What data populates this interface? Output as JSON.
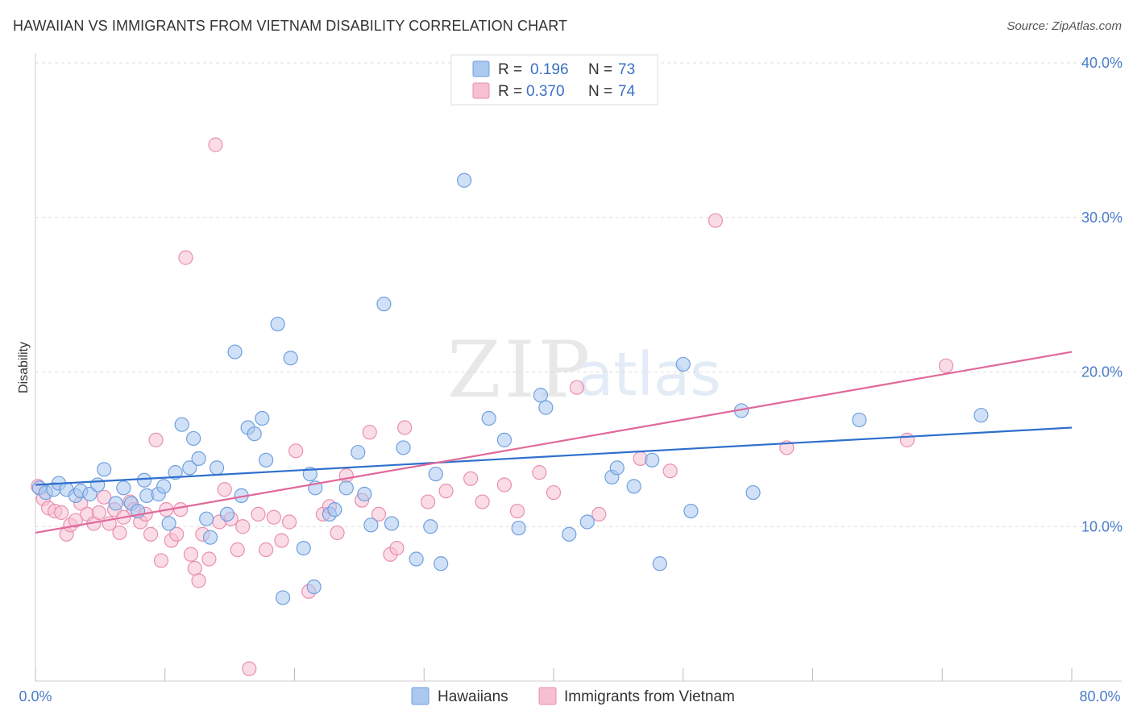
{
  "header": {
    "title": "HAWAIIAN VS IMMIGRANTS FROM VIETNAM DISABILITY CORRELATION CHART",
    "source": "Source: ZipAtlas.com"
  },
  "watermark": {
    "zip": "ZIP",
    "atlas": "atlas"
  },
  "colors": {
    "blue_fill": "#aac8f0",
    "blue_stroke": "#6f9fe0",
    "blue_line": "#2f6fcd",
    "pink_fill": "#f6bfd2",
    "pink_stroke": "#ea8fb0",
    "pink_line": "#e0689a",
    "tick_color": "#4a7cc9",
    "grid": "#dddddd"
  },
  "legend": {
    "rows": [
      {
        "r_label": "R =",
        "r_value": "0.196",
        "n_label": "N =",
        "n_value": "73"
      },
      {
        "r_label": "R =",
        "r_value": "0.370",
        "n_label": "N =",
        "n_value": "74"
      }
    ]
  },
  "chart_data": {
    "type": "scatter",
    "title": "HAWAIIAN VS IMMIGRANTS FROM VIETNAM DISABILITY CORRELATION CHART",
    "xlabel": "",
    "ylabel": "Disability",
    "xlim": [
      0,
      80
    ],
    "ylim": [
      0,
      40
    ],
    "y_ticks": [
      10,
      20,
      30,
      40
    ],
    "y_tick_labels": [
      "10.0%",
      "20.0%",
      "30.0%",
      "40.0%"
    ],
    "x_tick_labels": [
      "0.0%",
      "80.0%"
    ],
    "legend_position": "top-center",
    "series": [
      {
        "name": "Hawaiians",
        "r": 0.196,
        "n": 73,
        "trend": [
          [
            0,
            12.7
          ],
          [
            80,
            16.4
          ]
        ],
        "points": [
          [
            0.3,
            12.5
          ],
          [
            0.8,
            12.2
          ],
          [
            1.4,
            12.4
          ],
          [
            1.8,
            12.8
          ],
          [
            2.4,
            12.4
          ],
          [
            3.1,
            12.0
          ],
          [
            3.5,
            12.3
          ],
          [
            4.2,
            12.1
          ],
          [
            4.8,
            12.7
          ],
          [
            5.3,
            13.7
          ],
          [
            6.2,
            11.5
          ],
          [
            6.8,
            12.5
          ],
          [
            7.4,
            11.5
          ],
          [
            7.9,
            11.0
          ],
          [
            8.4,
            13.0
          ],
          [
            8.6,
            12.0
          ],
          [
            9.5,
            12.1
          ],
          [
            9.9,
            12.6
          ],
          [
            10.3,
            10.2
          ],
          [
            10.8,
            13.5
          ],
          [
            11.3,
            16.6
          ],
          [
            11.9,
            13.8
          ],
          [
            12.2,
            15.7
          ],
          [
            12.6,
            14.4
          ],
          [
            13.2,
            10.5
          ],
          [
            13.5,
            9.3
          ],
          [
            14.0,
            13.8
          ],
          [
            14.8,
            10.8
          ],
          [
            15.4,
            21.3
          ],
          [
            15.9,
            12.0
          ],
          [
            16.4,
            16.4
          ],
          [
            16.9,
            16.0
          ],
          [
            17.5,
            17.0
          ],
          [
            17.8,
            14.3
          ],
          [
            18.7,
            23.1
          ],
          [
            19.1,
            5.4
          ],
          [
            19.7,
            20.9
          ],
          [
            20.7,
            8.6
          ],
          [
            21.2,
            13.4
          ],
          [
            21.6,
            12.5
          ],
          [
            21.5,
            6.1
          ],
          [
            22.7,
            10.8
          ],
          [
            23.1,
            11.1
          ],
          [
            24.0,
            12.5
          ],
          [
            24.9,
            14.8
          ],
          [
            25.4,
            12.1
          ],
          [
            25.9,
            10.1
          ],
          [
            26.9,
            24.4
          ],
          [
            27.5,
            10.2
          ],
          [
            28.4,
            15.1
          ],
          [
            29.4,
            7.9
          ],
          [
            30.5,
            10.0
          ],
          [
            30.9,
            13.4
          ],
          [
            31.3,
            7.6
          ],
          [
            33.1,
            32.4
          ],
          [
            35.0,
            17.0
          ],
          [
            36.2,
            15.6
          ],
          [
            37.3,
            9.9
          ],
          [
            39.0,
            18.5
          ],
          [
            39.4,
            17.7
          ],
          [
            41.2,
            9.5
          ],
          [
            42.6,
            10.3
          ],
          [
            44.5,
            13.2
          ],
          [
            44.9,
            13.8
          ],
          [
            46.2,
            12.6
          ],
          [
            47.6,
            14.3
          ],
          [
            48.2,
            7.6
          ],
          [
            50.0,
            20.5
          ],
          [
            50.6,
            11.0
          ],
          [
            54.5,
            17.5
          ],
          [
            55.4,
            12.2
          ],
          [
            63.6,
            16.9
          ],
          [
            73.0,
            17.2
          ]
        ]
      },
      {
        "name": "Immigrants from Vietnam",
        "r": 0.37,
        "n": 74,
        "trend": [
          [
            0,
            9.6
          ],
          [
            80,
            21.3
          ]
        ],
        "points": [
          [
            0.2,
            12.6
          ],
          [
            0.6,
            11.8
          ],
          [
            1.0,
            11.2
          ],
          [
            1.5,
            11.0
          ],
          [
            2.0,
            10.9
          ],
          [
            2.4,
            9.5
          ],
          [
            2.7,
            10.1
          ],
          [
            3.1,
            10.4
          ],
          [
            3.5,
            11.5
          ],
          [
            4.0,
            10.8
          ],
          [
            4.5,
            10.2
          ],
          [
            4.9,
            10.9
          ],
          [
            5.3,
            11.9
          ],
          [
            5.7,
            10.2
          ],
          [
            6.1,
            11.1
          ],
          [
            6.5,
            9.6
          ],
          [
            6.8,
            10.6
          ],
          [
            7.3,
            11.6
          ],
          [
            7.6,
            11.1
          ],
          [
            8.1,
            10.3
          ],
          [
            8.5,
            10.8
          ],
          [
            8.9,
            9.5
          ],
          [
            9.3,
            15.6
          ],
          [
            9.7,
            7.8
          ],
          [
            10.1,
            11.1
          ],
          [
            10.5,
            9.1
          ],
          [
            10.9,
            9.5
          ],
          [
            11.2,
            11.1
          ],
          [
            11.6,
            27.4
          ],
          [
            12.0,
            8.2
          ],
          [
            12.3,
            7.3
          ],
          [
            12.6,
            6.5
          ],
          [
            12.9,
            9.5
          ],
          [
            13.4,
            7.9
          ],
          [
            13.9,
            34.7
          ],
          [
            14.2,
            10.3
          ],
          [
            14.6,
            12.4
          ],
          [
            15.1,
            10.5
          ],
          [
            15.6,
            8.5
          ],
          [
            16.0,
            10.0
          ],
          [
            16.5,
            0.8
          ],
          [
            17.2,
            10.8
          ],
          [
            17.8,
            8.5
          ],
          [
            18.4,
            10.6
          ],
          [
            19.0,
            9.1
          ],
          [
            19.6,
            10.3
          ],
          [
            20.1,
            14.9
          ],
          [
            21.1,
            5.8
          ],
          [
            22.2,
            10.8
          ],
          [
            22.7,
            11.3
          ],
          [
            23.3,
            9.6
          ],
          [
            24.0,
            13.3
          ],
          [
            25.2,
            11.7
          ],
          [
            25.8,
            16.1
          ],
          [
            26.5,
            10.8
          ],
          [
            27.4,
            8.2
          ],
          [
            27.9,
            8.6
          ],
          [
            28.5,
            16.4
          ],
          [
            30.3,
            11.6
          ],
          [
            31.7,
            12.3
          ],
          [
            33.6,
            13.1
          ],
          [
            34.5,
            11.6
          ],
          [
            36.2,
            12.7
          ],
          [
            37.2,
            11.0
          ],
          [
            38.9,
            13.5
          ],
          [
            40.0,
            12.2
          ],
          [
            41.8,
            19.0
          ],
          [
            43.5,
            10.8
          ],
          [
            46.7,
            14.4
          ],
          [
            49.0,
            13.6
          ],
          [
            52.5,
            29.8
          ],
          [
            58.0,
            15.1
          ],
          [
            67.3,
            15.6
          ],
          [
            70.3,
            20.4
          ]
        ]
      }
    ]
  },
  "bottom_legend": {
    "items": [
      {
        "label": "Hawaiians"
      },
      {
        "label": "Immigrants from Vietnam"
      }
    ]
  }
}
